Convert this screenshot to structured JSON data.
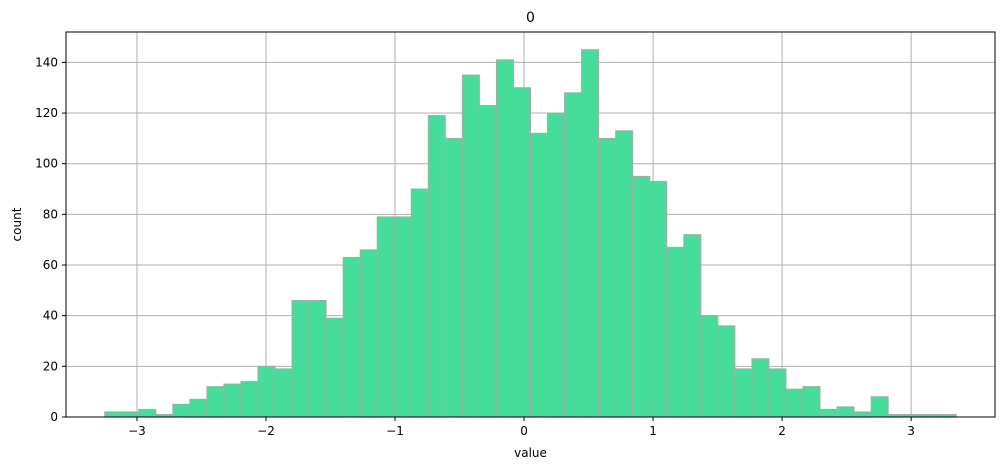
{
  "chart_data": {
    "type": "histogram",
    "title": "0",
    "xlabel": "value",
    "ylabel": "count",
    "xlim": [
      -3.55,
      3.65
    ],
    "ylim": [
      0,
      152
    ],
    "grid": true,
    "bar_color": "#44dd99",
    "edge_color": "#aaaaaa",
    "grid_color": "#b0b0b0",
    "x_ticks": [
      -3,
      -2,
      -1,
      0,
      1,
      2,
      3
    ],
    "x_tick_labels": [
      "−3",
      "−2",
      "−1",
      "0",
      "1",
      "2",
      "3"
    ],
    "y_ticks": [
      0,
      20,
      40,
      60,
      80,
      100,
      120,
      140
    ],
    "y_tick_labels": [
      "0",
      "20",
      "40",
      "60",
      "80",
      "100",
      "120",
      "140"
    ],
    "bins": {
      "start": -3.25,
      "end": 3.35,
      "counts": [
        2,
        2,
        3,
        1,
        5,
        7,
        12,
        13,
        14,
        20,
        19,
        46,
        46,
        39,
        63,
        66,
        79,
        79,
        90,
        119,
        110,
        135,
        123,
        141,
        130,
        112,
        120,
        128,
        145,
        110,
        113,
        95,
        93,
        67,
        72,
        40,
        36,
        19,
        23,
        19,
        11,
        12,
        3,
        4,
        2,
        8,
        1,
        1,
        1,
        1
      ]
    }
  }
}
